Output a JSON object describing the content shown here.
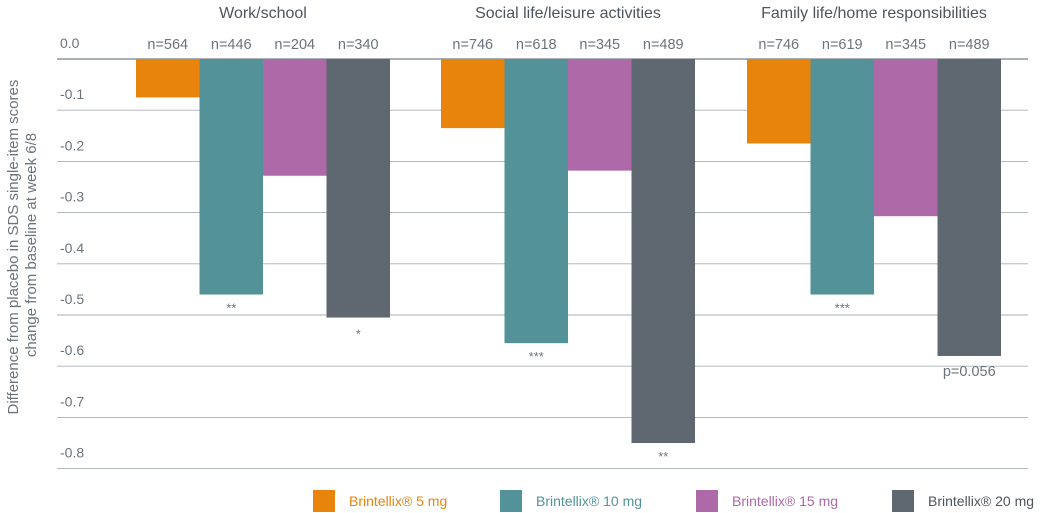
{
  "chart_data": {
    "type": "bar",
    "ylabel": "Difference from placebo in SDS single-item scores change from baseline at week 6/8",
    "ylabel_lines": [
      "Difference from placebo in SDS single-item scores",
      "change from baseline at week 6/8"
    ],
    "ylim": [
      -0.8,
      0.0
    ],
    "yticks": [
      0.0,
      -0.1,
      -0.2,
      -0.3,
      -0.4,
      -0.5,
      -0.6,
      -0.7,
      -0.8
    ],
    "ytick_labels": [
      "0.0",
      "-0.1",
      "-0.2",
      "-0.3",
      "-0.4",
      "-0.5",
      "-0.6",
      "-0.7",
      "-0.8"
    ],
    "grid": true,
    "legend_position": "bottom",
    "categories": [
      "Work/school",
      "Social life/leisure activities",
      "Family life/home responsibilities"
    ],
    "series": [
      {
        "name": "Brintellix® 5 mg",
        "color": "#e8840c",
        "values": [
          -0.075,
          -0.135,
          -0.165
        ],
        "n_labels": [
          "n=564",
          "n=746",
          "n=746"
        ],
        "significance": [
          "",
          "",
          ""
        ]
      },
      {
        "name": "Brintellix® 10 mg",
        "color": "#54929a",
        "values": [
          -0.46,
          -0.555,
          -0.46
        ],
        "n_labels": [
          "n=446",
          "n=618",
          "n=619"
        ],
        "significance": [
          "**",
          "***",
          "***"
        ]
      },
      {
        "name": "Brintellix® 15 mg",
        "color": "#ae69a8",
        "values": [
          -0.228,
          -0.218,
          -0.307
        ],
        "n_labels": [
          "n=204",
          "n=345",
          "n=345"
        ],
        "significance": [
          "",
          "",
          ""
        ]
      },
      {
        "name": "Brintellix® 20 mg",
        "color": "#5f6870",
        "values": [
          -0.505,
          -0.75,
          -0.58
        ],
        "n_labels": [
          "n=340",
          "n=489",
          "n=489"
        ],
        "significance": [
          "*",
          "**",
          "p=0.056"
        ]
      }
    ]
  }
}
